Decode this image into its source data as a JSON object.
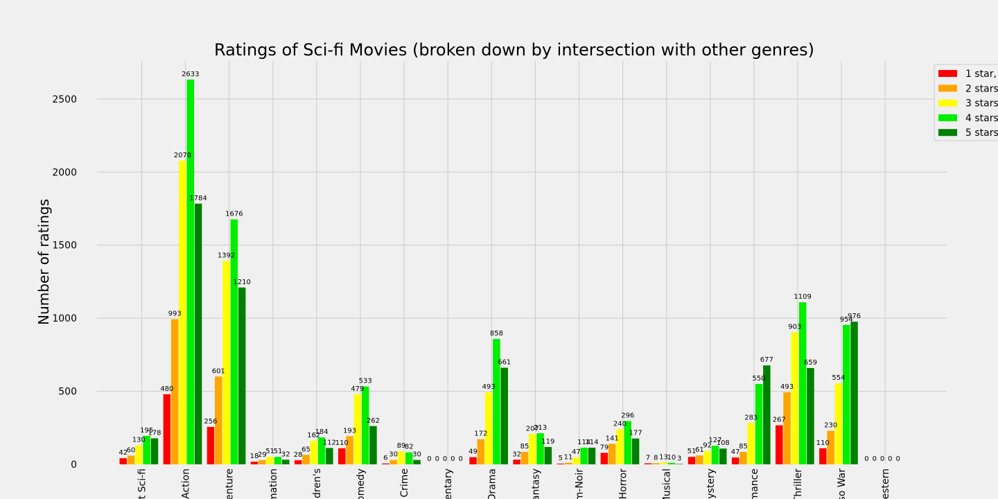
{
  "chart_data": {
    "type": "bar",
    "title": "Ratings of Sci-fi Movies (broken down by intersection with other genres)",
    "xlabel": "",
    "ylabel": "Number of ratings",
    "ylim": [
      0,
      2760
    ],
    "yticks": [
      0,
      500,
      1000,
      1500,
      2000,
      2500
    ],
    "grid": true,
    "legend_position": "top-right",
    "categories": [
      "Just Sci-fi",
      "Action",
      "Adventure",
      "Animation",
      "Children's",
      "Comedy",
      "Crime",
      "Documentary",
      "Drama",
      "Fantasy",
      "Film-Noir",
      "Horror",
      "Musical",
      "Mystery",
      "Romance",
      "Thriller",
      "War",
      "Western"
    ],
    "tick_labels": [
      "t Sci-fi",
      "Action",
      "enture",
      "mation",
      "ldren's",
      "omedy",
      "Crime",
      "entary",
      "Drama",
      "antasy",
      "m-Noir",
      "Horror",
      "Musical",
      "ystery",
      "mance",
      "Thriller",
      "so War",
      "estern"
    ],
    "series": [
      {
        "name": "1 star,",
        "color": "#ff0000",
        "values": [
          42,
          480,
          256,
          18,
          28,
          110,
          6,
          0,
          49,
          32,
          5,
          79,
          7,
          51,
          47,
          267,
          110,
          0
        ]
      },
      {
        "name": "2 stars",
        "color": "#ffa500",
        "values": [
          60,
          993,
          601,
          29,
          65,
          193,
          30,
          0,
          172,
          85,
          11,
          141,
          8,
          61,
          85,
          493,
          230,
          0
        ]
      },
      {
        "name": "3 stars",
        "color": "#ffff00",
        "values": [
          130,
          2078,
          1392,
          51,
          162,
          479,
          89,
          0,
          493,
          207,
          47,
          240,
          13,
          92,
          283,
          903,
          554,
          0
        ]
      },
      {
        "name": "4 stars",
        "color": "#00ee00",
        "values": [
          195,
          2633,
          1676,
          51,
          184,
          533,
          82,
          0,
          858,
          213,
          114,
          296,
          10,
          127,
          550,
          1109,
          954,
          0
        ]
      },
      {
        "name": "5 stars",
        "color": "#008000",
        "values": [
          178,
          1784,
          1210,
          32,
          112,
          262,
          30,
          0,
          661,
          119,
          114,
          177,
          3,
          108,
          677,
          659,
          976,
          0
        ]
      }
    ]
  }
}
